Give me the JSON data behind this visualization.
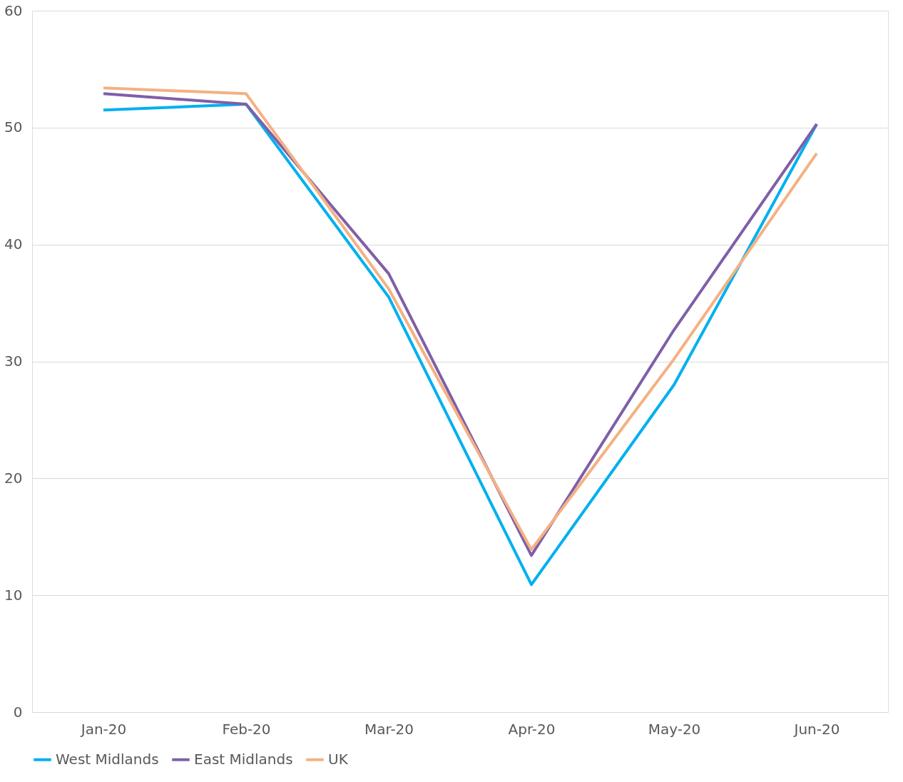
{
  "chart_data": {
    "type": "line",
    "categories": [
      "Jan-20",
      "Feb-20",
      "Mar-20",
      "Apr-20",
      "May-20",
      "Jun-20"
    ],
    "series": [
      {
        "name": "West Midlands",
        "color": "#00b0f0",
        "values": [
          51.5,
          52.0,
          35.5,
          10.9,
          28.0,
          50.3
        ]
      },
      {
        "name": "East Midlands",
        "color": "#7f5fa8",
        "values": [
          52.9,
          52.0,
          37.5,
          13.4,
          32.7,
          50.3
        ]
      },
      {
        "name": "UK",
        "color": "#f4b183",
        "values": [
          53.4,
          52.9,
          36.2,
          13.9,
          30.2,
          47.8
        ]
      }
    ],
    "ylim": [
      0,
      60
    ],
    "yticks": [
      0,
      10,
      20,
      30,
      40,
      50,
      60
    ],
    "grid": "y",
    "legend": "bottom",
    "marker": "none",
    "line_style": "solid"
  }
}
